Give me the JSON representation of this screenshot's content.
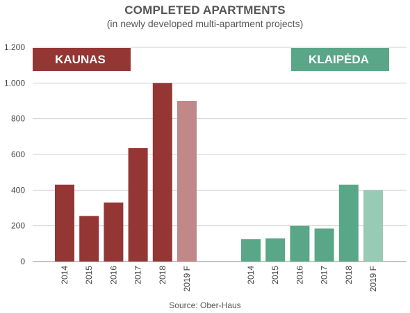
{
  "title": "COMPLETED APARTMENTS",
  "subtitle": "(in newly developed multi-apartment projects)",
  "source": "Source: Ober-Haus",
  "colors": {
    "kaunas": "#943634",
    "kaunas_forecast": "#c08888",
    "klaipeda": "#5aa689",
    "klaipeda_forecast": "#98cbb6",
    "grid": "#d0d0d0",
    "axis": "#888888"
  },
  "chart_data": {
    "type": "bar",
    "y_tick_labels": [
      "0",
      "200",
      "400",
      "600",
      "800",
      "1.000",
      "1.200"
    ],
    "y_ticks": [
      0,
      200,
      400,
      600,
      800,
      1000,
      1200
    ],
    "ylim": [
      0,
      1200
    ],
    "grid": true,
    "panels": [
      {
        "name": "KAUNAS",
        "categories": [
          "2014",
          "2015",
          "2016",
          "2017",
          "2018",
          "2019 F"
        ],
        "values": [
          430,
          255,
          330,
          635,
          1000,
          900
        ],
        "forecast": [
          false,
          false,
          false,
          false,
          false,
          true
        ]
      },
      {
        "name": "KLAIPĖDA",
        "categories": [
          "2014",
          "2015",
          "2016",
          "2017",
          "2018",
          "2019 F"
        ],
        "values": [
          125,
          130,
          200,
          185,
          430,
          400
        ],
        "forecast": [
          false,
          false,
          false,
          false,
          false,
          true
        ]
      }
    ]
  }
}
